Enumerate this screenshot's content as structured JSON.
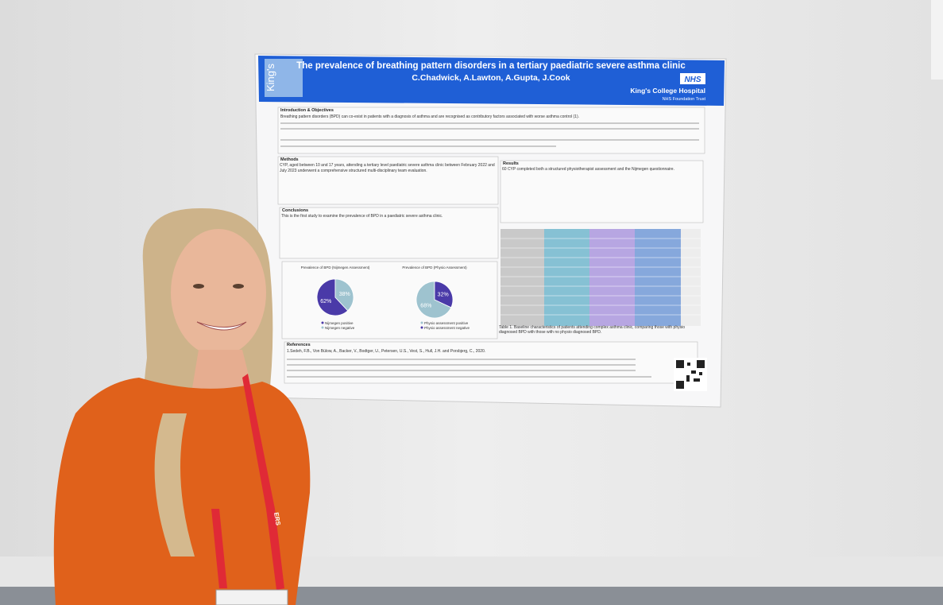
{
  "poster": {
    "title": "The prevalence of breathing pattern disorders in a tertiary paediatric severe asthma clinic",
    "authors": "C.Chadwick, A.Lawton, A.Gupta, J.Cook",
    "logo_left": "King's",
    "nhs": "NHS",
    "hospital": "King's College Hospital",
    "trust": "NHS Foundation Trust",
    "sections": [
      {
        "heading": "Introduction & Objectives",
        "text": "Breathing pattern disorders (BPD) can co-exist in patients with a diagnosis of asthma and are recognised as contributory factors associated with worse asthma control (1)."
      },
      {
        "heading": "Methods",
        "text": "CYP, aged between 10 and 17 years, attending a tertiary level paediatric severe asthma clinic between February 2022 and July 2023 underwent a comprehensive structured multi-disciplinary team evaluation."
      },
      {
        "heading": "Conclusions",
        "text": "This is the first study to examine the prevalence of BPD in a paediatric severe asthma clinic."
      },
      {
        "heading": "Results",
        "text": "60 CYP completed both a structured physiotherapist assessment and the Nijmegen questionnaire."
      },
      {
        "heading": "References",
        "text": "1.Sedeh, F.B., Von Bülow, A., Backer, V., Bodtger, U., Petersen, U.S., Vest, S., Hull, J.H. and Porsbjerg, C., 2020."
      }
    ],
    "charts": [
      {
        "type": "pie",
        "title": "Prevalence of BPD (Nijmegen Assessment)",
        "values": [
          62,
          38
        ],
        "value_labels": [
          "62%",
          "38%"
        ],
        "colors": [
          "#4a3aa8",
          "#9ec3cf"
        ],
        "legend": [
          "Nijmegen positive",
          "Nijmegen negative"
        ]
      },
      {
        "type": "pie",
        "title": "Prevalence of BPD (Physio Assessment)",
        "values": [
          68,
          32
        ],
        "value_labels": [
          "68%",
          "32%"
        ],
        "colors": [
          "#9ec3cf",
          "#4a3aa8"
        ],
        "legend": [
          "Physio assessment positive",
          "Physio assessment negative"
        ]
      }
    ],
    "table_caption": "Table 1. Baseline characteristics of patients attending complex asthma clinic, comparing those with physio diagnosed BPD with those with no physio diagnosed BPD."
  },
  "lanyard": "ERS"
}
